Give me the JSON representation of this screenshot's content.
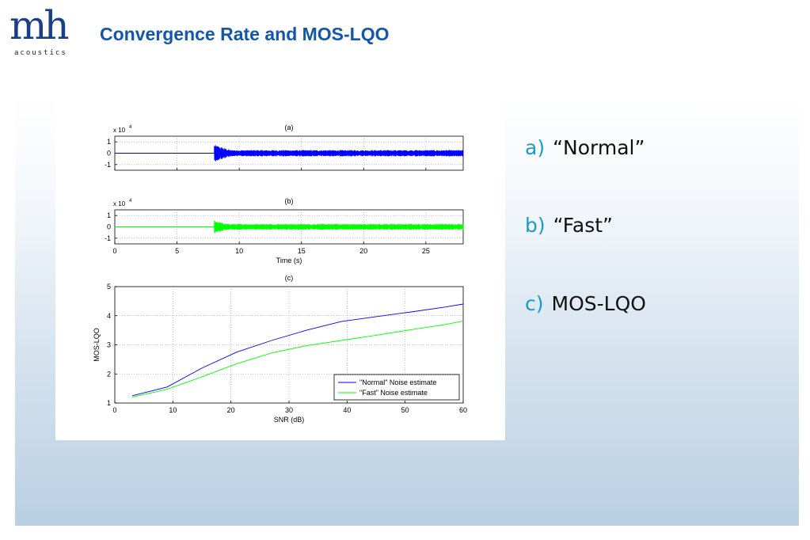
{
  "header": {
    "logo_mark": "mh",
    "logo_sub": "acoustics",
    "title": "Convergence Rate and MOS-LQO"
  },
  "bullets": [
    {
      "marker": "a)",
      "text": "“Normal”"
    },
    {
      "marker": "b)",
      "text": "“Fast”"
    },
    {
      "marker": "c)",
      "text": "MOS-LQO"
    }
  ],
  "colors": {
    "title": "#1457a8",
    "logo": "#1b3f86",
    "bullet_marker": "#1a9cc9",
    "normal_series": "#0000ff",
    "fast_series": "#00ff00"
  },
  "chart_data": [
    {
      "type": "line",
      "title": "(a)",
      "exponent_label": "x 10",
      "exponent": "4",
      "xlim": [
        0,
        28
      ],
      "ylim": [
        -1.5,
        1.5
      ],
      "yticks": [
        1,
        0,
        -1
      ],
      "xticks": [
        0,
        5,
        10,
        15,
        20,
        25
      ],
      "show_xtick_labels": false,
      "grid": true,
      "signal": {
        "silence_until": 8.0,
        "onset": 8.0,
        "burst_end": 9.3,
        "burst_amp": 0.75,
        "steady_amp": 0.28,
        "color": "#0000ff"
      }
    },
    {
      "type": "line",
      "title": "(b)",
      "exponent_label": "x 10",
      "exponent": "4",
      "xlabel": "Time (s)",
      "xlim": [
        0,
        28
      ],
      "ylim": [
        -1.5,
        1.5
      ],
      "yticks": [
        1,
        0,
        -1
      ],
      "xticks": [
        0,
        5,
        10,
        15,
        20,
        25
      ],
      "show_xtick_labels": true,
      "grid": true,
      "signal": {
        "silence_until": 8.0,
        "onset": 8.0,
        "burst_end": 8.9,
        "burst_amp": 0.6,
        "steady_amp": 0.26,
        "color": "#00ff00"
      }
    },
    {
      "type": "line",
      "title": "(c)",
      "xlabel": "SNR (dB)",
      "ylabel": "MOS-LQO",
      "xlim": [
        0,
        60
      ],
      "ylim": [
        1,
        5
      ],
      "xticks": [
        0,
        10,
        20,
        30,
        40,
        50,
        60
      ],
      "yticks": [
        1,
        2,
        3,
        4,
        5
      ],
      "grid": true,
      "legend": "bottom-right",
      "series": [
        {
          "name": "\"Normal\" Noise estimate",
          "color": "#0000ff",
          "x": [
            3,
            9,
            15,
            21,
            27,
            33,
            39,
            45,
            51,
            57,
            60
          ],
          "y": [
            1.25,
            1.55,
            2.2,
            2.75,
            3.15,
            3.5,
            3.8,
            3.97,
            4.13,
            4.3,
            4.4
          ]
        },
        {
          "name": "\"Fast\" Noise estimate",
          "color": "#00ff00",
          "x": [
            3,
            9,
            15,
            21,
            27,
            33,
            39,
            45,
            51,
            57,
            60
          ],
          "y": [
            1.2,
            1.47,
            1.9,
            2.35,
            2.72,
            2.97,
            3.15,
            3.33,
            3.52,
            3.7,
            3.82
          ]
        }
      ]
    }
  ]
}
